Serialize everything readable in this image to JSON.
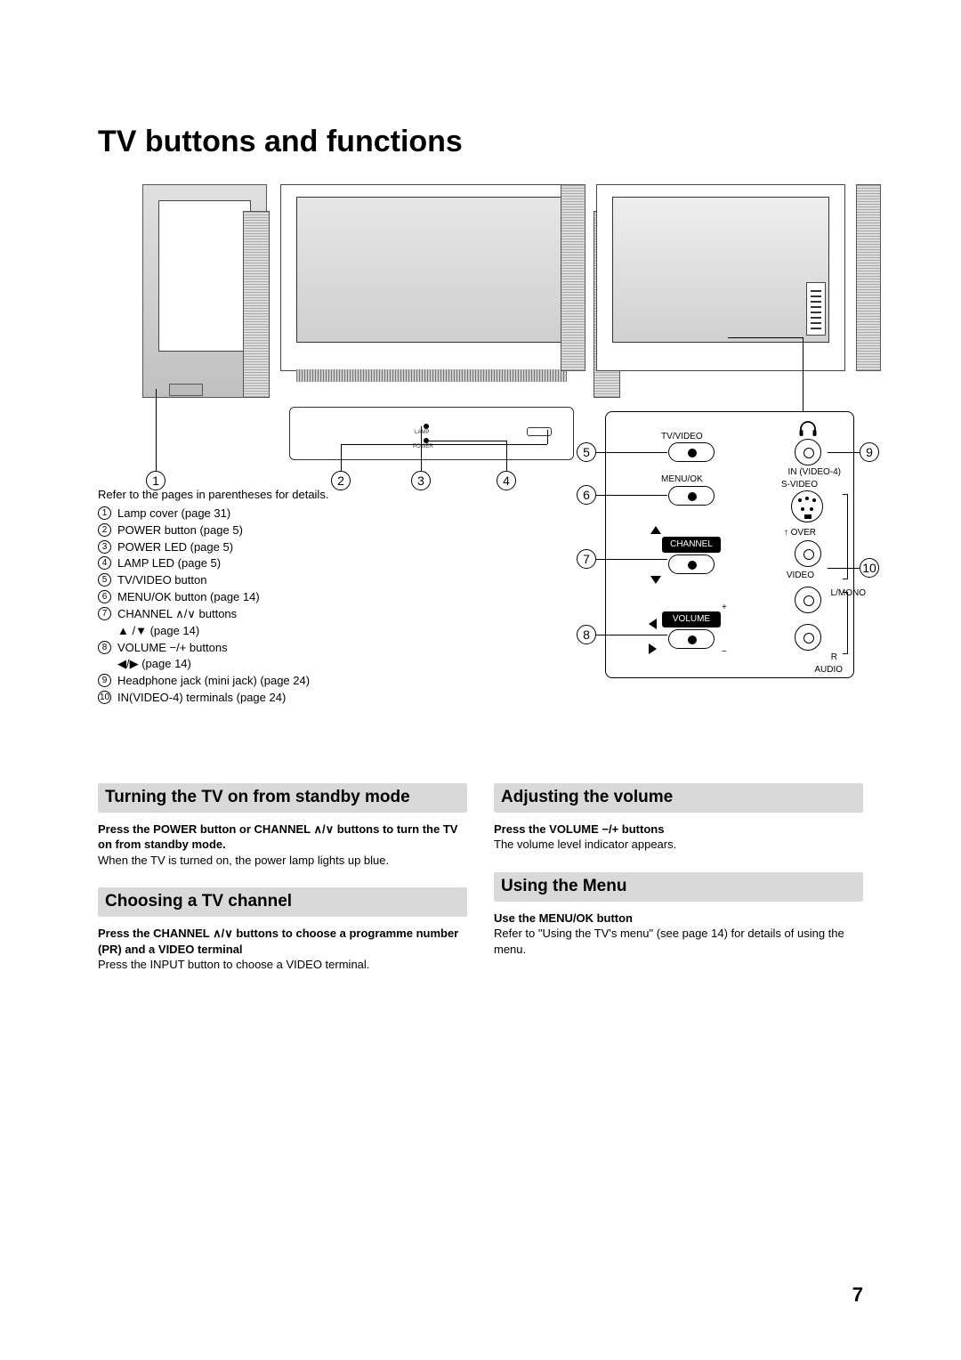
{
  "title": "TV buttons and functions",
  "page_number": "7",
  "ref_intro": "Refer to the pages in parentheses for details.",
  "ref_items": [
    "Lamp cover (page 31)",
    "POWER button (page 5)",
    "POWER LED (page 5)",
    "LAMP LED (page 5)",
    "TV/VIDEO button",
    "MENU/OK button (page 14)",
    "CHANNEL ∧/∨ buttons\n▲ /▼ (page 14)",
    "VOLUME −/+ buttons\n◀/▶ (page 14)",
    "Headphone jack (mini jack) (page 24)",
    "IN(VIDEO-4) terminals (page 24)"
  ],
  "panel_labels": {
    "tvvideo": "TV/VIDEO",
    "menuok": "MENU/OK",
    "channel": "CHANNEL",
    "volume": "VOLUME",
    "invideo4": "IN (VIDEO-4)",
    "svideo": "S-VIDEO",
    "over": "OVER",
    "video": "VIDEO",
    "lmono": "L/MONO",
    "r": "R",
    "audio": "AUDIO"
  },
  "popout_labels": {
    "lamp": "LAMP",
    "power": "POWER"
  },
  "sections": {
    "s1": {
      "heading": "Turning the TV on from standby mode",
      "bold": "Press the POWER button or CHANNEL ∧/∨ buttons to turn the TV on from standby mode.",
      "body": "When the TV is turned on, the power lamp lights up blue."
    },
    "s2": {
      "heading": "Choosing a TV channel",
      "bold": "Press the CHANNEL ∧/∨ buttons to choose a programme number (PR) and a VIDEO terminal",
      "body": "Press the INPUT button to choose a VIDEO terminal."
    },
    "s3": {
      "heading": "Adjusting the volume",
      "bold": "Press the VOLUME −/+ buttons",
      "body": "The volume level indicator appears."
    },
    "s4": {
      "heading": "Using the Menu",
      "bold": "Use the MENU/OK button",
      "body": "Refer to \"Using the TV's menu\" (see page 14) for details of using the menu."
    }
  },
  "colors": {
    "heading_bg": "#d9d9d9",
    "line": "#000000"
  }
}
